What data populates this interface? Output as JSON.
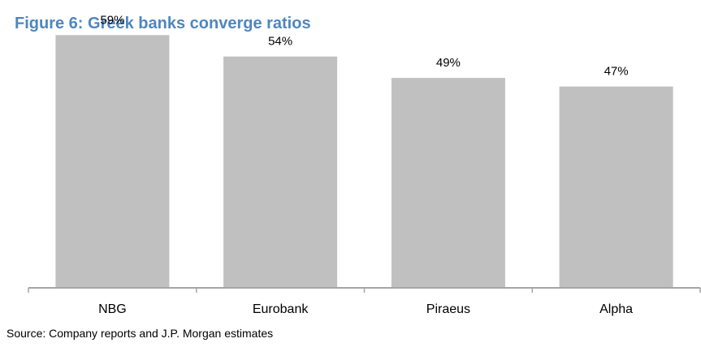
{
  "title": "Figure 6: Greek banks converge ratios",
  "source": "Source: Company reports and J.P. Morgan estimates",
  "colors": {
    "title": "#4f86bf",
    "bar": "#c0c0c0",
    "axis": "#a6a6a6",
    "text": "#000000"
  },
  "chart_data": {
    "type": "bar",
    "categories": [
      "NBG",
      "Eurobank",
      "Piraeus",
      "Alpha"
    ],
    "values": [
      59,
      54,
      49,
      47
    ],
    "data_labels": [
      "59%",
      "54%",
      "49%",
      "47%"
    ],
    "ylim": [
      0,
      60
    ],
    "grid": false,
    "legend": "none"
  }
}
